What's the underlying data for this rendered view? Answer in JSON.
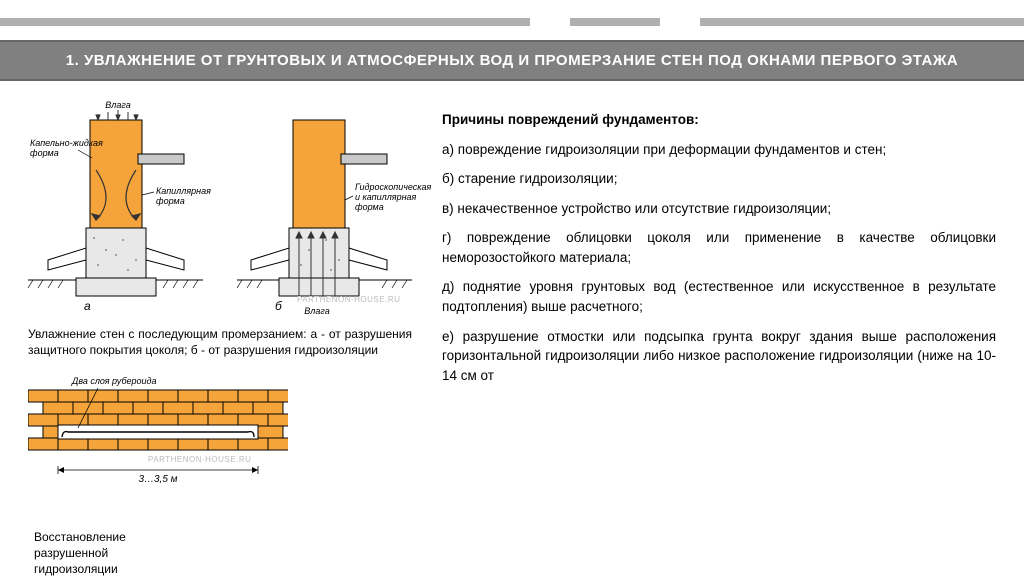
{
  "title": "1. УВЛАЖНЕНИЕ ОТ ГРУНТОВЫХ И АТМОСФЕРНЫХ ВОД И ПРОМЕРЗАНИЕ СТЕН ПОД ОКНАМИ ПЕРВОГО ЭТАЖА",
  "decor_bars": {
    "color": "#b0b0b0",
    "bar1_w": 530,
    "bar2_l": 570,
    "bar2_w": 90,
    "bar3_l": 700,
    "bar3_w": 324
  },
  "right_text": {
    "hdr": "Причины повреждений фундаментов:",
    "a": "а) повреждение гидроизоляции при деформации фундаментов и стен;",
    "b": "б) старение гидроизоляции;",
    "v": "в) некачественное устройство или отсутствие гидроизоляции;",
    "g": "г) повреждение облицовки цоколя или применение в качестве облицовки неморозостойкого материала;",
    "d": "д) поднятие уровня грунтовых вод (естественное или искусственное в результате подтопления) выше расчетного;",
    "e": "е) разрушение отмостки или подсыпка грунта вокруг здания выше расположения горизонтальной гидроизоляции либо низкое расположение гидроизоляции (ниже на 10-14 см от"
  },
  "fig1_caption": "Увлажнение стен с последующим промерзанием: а - от разрушения защитного покрытия цоколя; б - от разрушения гидроизоляции",
  "fig2_labels": {
    "two_layers": "Два слоя рубероида",
    "dim": "3…3,5 м",
    "side_caption": "Восстановление разрушенной гидроизоляции"
  },
  "diagram_labels": {
    "vlaga": "Влага",
    "kapel": "Капельно-жидкая\nформа",
    "kapil": "Капиллярная\nформа",
    "gidro": "Гидроскопическая\nи капиллярная\nформа",
    "vlaga2": "Влага",
    "a": "а",
    "b": "б"
  },
  "colors": {
    "wall": "#f4a43a",
    "plinth_fill": "#e8e8e8",
    "plinth_stroke": "#000",
    "sill": "#c9c9c9",
    "ground": "#000",
    "arrow": "#333",
    "brick_fill": "#f4a43a",
    "brick_mortar": "#000",
    "brick_bg": "#ffffff"
  },
  "brick": {
    "rows": 5,
    "cols": 8,
    "bw": 30,
    "bh": 12,
    "dim_text": "3…3,5 м"
  },
  "watermark": "PARTHENON-HOUSE.RU"
}
